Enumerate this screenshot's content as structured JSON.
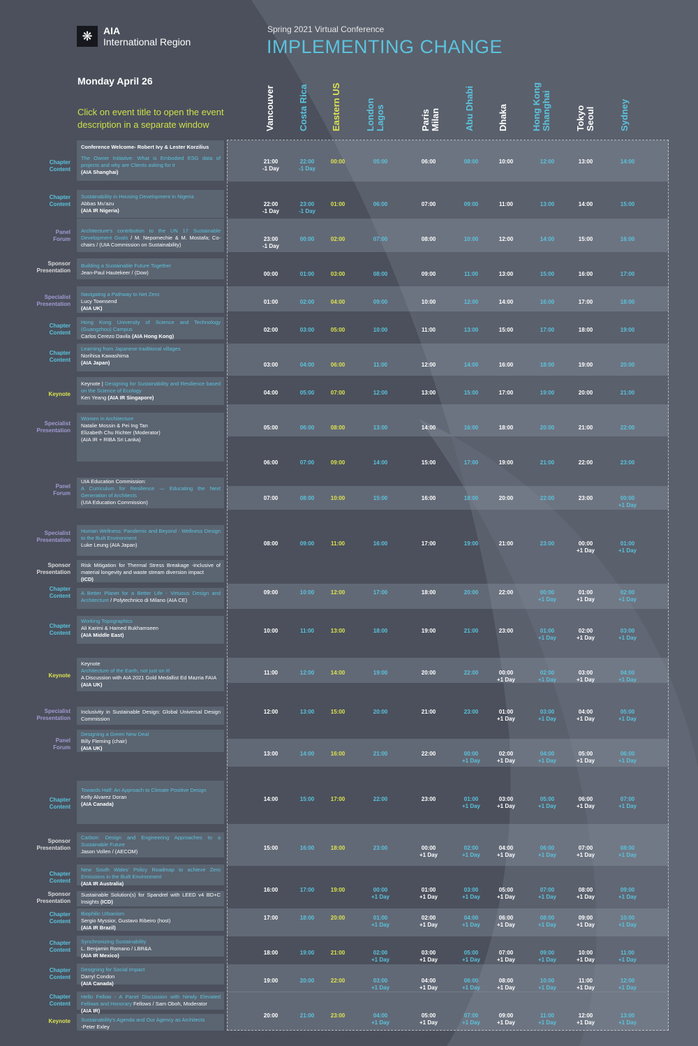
{
  "org": {
    "short": "AIA",
    "name": "International Region"
  },
  "conference": {
    "subtitle": "Spring 2021 Virtual Conference",
    "title": "IMPLEMENTING CHANGE"
  },
  "day": "Monday April 26",
  "instructions": "Click on event title to open the event description in a separate window",
  "colors": {
    "background": "#4b505c",
    "accent_blue": "#5bc3dd",
    "accent_yellow": "#dde34e",
    "accent_purple": "#a39ad2"
  },
  "cities": [
    {
      "label": "Vancouver",
      "color": "white"
    },
    {
      "label": "Costa Rica",
      "color": "blue"
    },
    {
      "label": "Eastern US",
      "color": "yellow"
    },
    {
      "label": "London\nLagos",
      "color": "blue"
    },
    {
      "label": "Paris\nMilan",
      "color": "white"
    },
    {
      "label": "Abu Dhabi",
      "color": "blue"
    },
    {
      "label": "Dhaka",
      "color": "white"
    },
    {
      "label": "Hong Kong\nShanghai",
      "color": "blue"
    },
    {
      "label": "Tokyo\nSeoul",
      "color": "white"
    },
    {
      "label": "Sydney",
      "color": "blue"
    }
  ],
  "time_rows": [
    {
      "times": [
        "21:00\n-1 Day",
        "22:00\n-1 Day",
        "00:00",
        "05:00",
        "06:00",
        "08:00",
        "10:00",
        "12:00",
        "13:00",
        "14:00"
      ]
    },
    {
      "times": [
        "22:00\n-1 Day",
        "23:00\n-1 Day",
        "01:00",
        "06:00",
        "07:00",
        "09:00",
        "11:00",
        "13:00",
        "14:00",
        "15:00"
      ]
    },
    {
      "times": [
        "23:00\n-1 Day",
        "00:00",
        "02:00",
        "07:00",
        "08:00",
        "10:00",
        "12:00",
        "14:00",
        "15:00",
        "16:00"
      ]
    },
    {
      "times": [
        "00:00",
        "01:00",
        "03:00",
        "08:00",
        "09:00",
        "11:00",
        "13:00",
        "15:00",
        "16:00",
        "17:00"
      ]
    },
    {
      "times": [
        "01:00",
        "02:00",
        "04:00",
        "09:00",
        "10:00",
        "12:00",
        "14:00",
        "16:00",
        "17:00",
        "18:00"
      ]
    },
    {
      "times": [
        "02:00",
        "03:00",
        "05:00",
        "10:00",
        "11:00",
        "13:00",
        "15:00",
        "17:00",
        "18:00",
        "19:00"
      ]
    },
    {
      "times": [
        "03:00",
        "04:00",
        "06:00",
        "11:00",
        "12:00",
        "14:00",
        "16:00",
        "18:00",
        "19:00",
        "20:00"
      ]
    },
    {
      "times": [
        "04:00",
        "05:00",
        "07:00",
        "12:00",
        "13:00",
        "15:00",
        "17:00",
        "19:00",
        "20:00",
        "21:00"
      ]
    },
    {
      "times": [
        "05:00",
        "06:00",
        "08:00",
        "13:00",
        "14:00",
        "16:00",
        "18:00",
        "20:00",
        "21:00",
        "22:00"
      ]
    },
    {
      "times": [
        "06:00",
        "07:00",
        "09:00",
        "14:00",
        "15:00",
        "17:00",
        "19:00",
        "21:00",
        "22:00",
        "23:00"
      ]
    },
    {
      "times": [
        "07:00",
        "08:00",
        "10:00",
        "15:00",
        "16:00",
        "18:00",
        "20:00",
        "22:00",
        "23:00",
        "00:00\n+1 Day"
      ]
    },
    {
      "times": [
        "08:00",
        "09:00",
        "11:00",
        "16:00",
        "17:00",
        "19:00",
        "21:00",
        "23:00",
        "00:00\n+1 Day",
        "01:00\n+1 Day"
      ]
    },
    {
      "times": [
        "09:00",
        "10:00",
        "12:00",
        "17:00",
        "18:00",
        "20:00",
        "22:00",
        "00:00\n+1 Day",
        "01:00\n+1 Day",
        "02:00\n+1 Day"
      ]
    },
    {
      "times": [
        "10:00",
        "11:00",
        "13:00",
        "18:00",
        "19:00",
        "21:00",
        "23:00",
        "01:00\n+1 Day",
        "02:00\n+1 Day",
        "03:00\n+1 Day"
      ]
    },
    {
      "times": [
        "11:00",
        "12:00",
        "14:00",
        "19:00",
        "20:00",
        "22:00",
        "00:00\n+1 Day",
        "02:00\n+1 Day",
        "03:00\n+1 Day",
        "04:00\n+1 Day"
      ]
    },
    {
      "times": [
        "12:00",
        "13:00",
        "15:00",
        "20:00",
        "21:00",
        "23:00",
        "01:00\n+1 Day",
        "03:00\n+1 Day",
        "04:00\n+1 Day",
        "05:00\n+1 Day"
      ]
    },
    {
      "times": [
        "13:00",
        "14:00",
        "16:00",
        "21:00",
        "22:00",
        "00:00\n+1 Day",
        "02:00\n+1 Day",
        "04:00\n+1 Day",
        "05:00\n+1 Day",
        "06:00\n+1 Day"
      ]
    },
    {
      "times": [
        "14:00",
        "15:00",
        "17:00",
        "22:00",
        "23:00",
        "01:00\n+1 Day",
        "03:00\n+1 Day",
        "05:00\n+1 Day",
        "06:00\n+1 Day",
        "07:00\n+1 Day"
      ]
    },
    {
      "times": [
        "15:00",
        "16:00",
        "18:00",
        "23:00",
        "00:00\n+1 Day",
        "02:00\n+1 Day",
        "04:00\n+1 Day",
        "06:00\n+1 Day",
        "07:00\n+1 Day",
        "08:00\n+1 Day"
      ]
    },
    {
      "times": [
        "16:00",
        "17:00",
        "19:00",
        "00:00\n+1 Day",
        "01:00\n+1 Day",
        "03:00\n+1 Day",
        "05:00\n+1 Day",
        "07:00\n+1 Day",
        "08:00\n+1 Day",
        "09:00\n+1 Day"
      ]
    },
    {
      "times": [
        "17:00",
        "18:00",
        "20:00",
        "01:00\n+1 Day",
        "02:00\n+1 Day",
        "04:00\n+1 Day",
        "06:00\n+1 Day",
        "08:00\n+1 Day",
        "09:00\n+1 Day",
        "10:00\n+1 Day"
      ]
    },
    {
      "times": [
        "18:00",
        "19:00",
        "21:00",
        "02:00\n+1 Day",
        "03:00\n+1 Day",
        "05:00\n+1 Day",
        "07:00\n+1 Day",
        "09:00\n+1 Day",
        "10:00\n+1 Day",
        "11:00\n+1 Day"
      ]
    },
    {
      "times": [
        "19:00",
        "20:00",
        "22:00",
        "03:00\n+1 Day",
        "04:00\n+1 Day",
        "06:00\n+1 Day",
        "08:00\n+1 Day",
        "10:00\n+1 Day",
        "11:00\n+1 Day",
        "12:00\n+1 Day"
      ]
    },
    {
      "times": [
        "20:00",
        "21:00",
        "23:00",
        "04:00\n+1 Day",
        "05:00\n+1 Day",
        "07:00\n+1 Day",
        "09:00\n+1 Day",
        "11:00\n+1 Day",
        "12:00\n+1 Day",
        "13:00\n+1 Day"
      ]
    }
  ],
  "events": [
    {
      "category": "Chapter\nContent",
      "kind": "chapter",
      "lines": [
        {
          "t": "Conference Welcome- Robert Ivy & Lester Korzilius",
          "s": "b"
        },
        {
          "t": "",
          "s": "n"
        },
        {
          "t": "The Owner Initiative: What is Embodied ESG data of projects and why are Clients asking for it",
          "s": "t"
        },
        {
          "t": "(AIA Shanghai)",
          "s": "b"
        }
      ]
    },
    {
      "category": "Chapter\nContent",
      "kind": "chapter",
      "lines": [
        {
          "t": "Sustainability in Housing Development in Nigeria",
          "s": "t"
        },
        {
          "t": "Abbas Mu'azu",
          "s": "n"
        },
        {
          "t": "(AIA IR Nigeria)",
          "s": "b"
        }
      ]
    },
    {
      "category": "Panel\nForum",
      "kind": "panel",
      "lines": [
        {
          "t": "Architecture's contribution to the UN 17 Sustainable Development Goals",
          "s": "t"
        },
        {
          "t": " / M. Nepomechie & M. Mostafa; Co-chairs / (UIA Commission on Sustainability)",
          "s": "n"
        }
      ]
    },
    {
      "category": "Sponsor\nPresentation",
      "kind": "sponsor",
      "lines": [
        {
          "t": "Building a Sustainable Future Together",
          "s": "t"
        },
        {
          "t": "Jean-Paul Hautekeer / (Dow)",
          "s": "n"
        }
      ]
    },
    {
      "category": "Specialist\nPresentation",
      "kind": "specialist",
      "lines": [
        {
          "t": "Navigating a Pathway to Net Zero",
          "s": "t"
        },
        {
          "t": "Lucy Townsend",
          "s": "n"
        },
        {
          "t": "(AIA UK)",
          "s": "b"
        }
      ]
    },
    {
      "category": "Chapter\nContent",
      "kind": "chapter",
      "lines": [
        {
          "t": "Hong Kong University of Science and Technology (Guangzhou) Campus",
          "s": "t"
        },
        {
          "t": "Carlos Cerezo Davila ",
          "s": "n"
        },
        {
          "t": "(AIA Hong Kong)",
          "s": "b"
        }
      ]
    },
    {
      "category": "Chapter\nContent",
      "kind": "chapter",
      "lines": [
        {
          "t": "Learning from Japanese traditional villages",
          "s": "t"
        },
        {
          "t": "Norihisa Kawashima",
          "s": "n"
        },
        {
          "t": "(AIA Japan)",
          "s": "b"
        }
      ]
    },
    {
      "category": "Keynote",
      "kind": "keynote",
      "lines": [
        {
          "t": "Keynote | ",
          "s": "n"
        },
        {
          "t": "Designing for Sustainability and Resilience based on the Science of Ecology",
          "s": "t"
        },
        {
          "t": "Ken Yeang ",
          "s": "n"
        },
        {
          "t": "(AIA IR Singapore)",
          "s": "b"
        }
      ]
    },
    {
      "category": "Specialist\nPresentation",
      "kind": "specialist",
      "lines": [
        {
          "t": "Women in Architecture",
          "s": "t"
        },
        {
          "t": "Natalie Mossin & Pei Ing Tan",
          "s": "n"
        },
        {
          "t": "Elizabeth Chu Richter (Moderator)",
          "s": "n"
        },
        {
          "t": "(AIA IR + RIBA Sri Lanka)",
          "s": "n"
        }
      ]
    },
    {
      "category": "Panel\nForum",
      "kind": "panel",
      "lines": [
        {
          "t": "UIA Education Commission:",
          "s": "n"
        },
        {
          "t": "A Curriculum for Resilience — Educating the Next Generation of Architects",
          "s": "t"
        },
        {
          "t": "(UIA Education Commission)",
          "s": "n"
        }
      ]
    },
    {
      "category": "Specialist\nPresentation",
      "kind": "specialist",
      "lines": [
        {
          "t": "Human Wellness: Pandemic and Beyond - Wellness Design to the Built Environment",
          "s": "t"
        },
        {
          "t": "Luke Leung (AIA Japan)",
          "s": "n"
        }
      ]
    },
    {
      "category": "Sponsor\nPresentation",
      "kind": "sponsor",
      "lines": [
        {
          "t": "Risk Mitigation for Thermal Stress Breakage -inclusive of material longevity and waste stream diversion impact",
          "s": "n"
        },
        {
          "t": "(ICD)",
          "s": "b"
        }
      ]
    },
    {
      "category": "Chapter\nContent",
      "kind": "chapter",
      "lines": [
        {
          "t": "A Better Planet for a Better Life - Virtuous Design and Architecture",
          "s": "t"
        },
        {
          "t": " / Polytechnico di Milano (AIA CE)",
          "s": "n"
        }
      ]
    },
    {
      "category": "Chapter\nContent",
      "kind": "chapter",
      "lines": [
        {
          "t": "Working Topographics",
          "s": "t"
        },
        {
          "t": "Ali Karimi & Hamed Bukhamseen",
          "s": "n"
        },
        {
          "t": "(AIA Middle East)",
          "s": "b"
        }
      ]
    },
    {
      "category": "Keynote",
      "kind": "keynote",
      "lines": [
        {
          "t": "Keynote",
          "s": "n"
        },
        {
          "t": "Architecture of the Earth, not just on it!",
          "s": "t"
        },
        {
          "t": "A Discussion with AIA 2021 Gold Medallist Ed Mazria FAIA",
          "s": "n"
        },
        {
          "t": "(AIA UK)",
          "s": "b"
        }
      ]
    },
    {
      "category": "Specialist\nPresentation",
      "kind": "specialist",
      "lines": [
        {
          "t": "Inclusivity in Sustainable Design: Global Universal Design Commission",
          "s": "n"
        }
      ]
    },
    {
      "category": "Panel\nForum",
      "kind": "panel",
      "lines": [
        {
          "t": "Designing a Green New Deal",
          "s": "t"
        },
        {
          "t": "Billy Fleming (chair)",
          "s": "n"
        },
        {
          "t": "(AIA UK)",
          "s": "b"
        }
      ]
    },
    {
      "category": "Chapter\nContent",
      "kind": "chapter",
      "lines": [
        {
          "t": "Towards Half: An Approach to Climate Positive Design",
          "s": "t"
        },
        {
          "t": "Kelly Alvarez Doran",
          "s": "n"
        },
        {
          "t": "(AIA Canada)",
          "s": "b"
        }
      ]
    },
    {
      "category": "Sponsor\nPresentation",
      "kind": "sponsor",
      "lines": [
        {
          "t": "Carbon: Design and Engineering Approaches to a Sustainable Future",
          "s": "t"
        },
        {
          "t": "Jason Vollen / (AECOM)",
          "s": "n"
        }
      ]
    },
    {
      "category": "Chapter\nContent",
      "kind": "chapter",
      "lines": [
        {
          "t": "New South Wales' Policy Roadmap to achieve Zero Emissions in the Built Environment",
          "s": "t"
        },
        {
          "t": "(AIA IR Australia)",
          "s": "b"
        }
      ]
    },
    {
      "category": "Sponsor\nPresentation",
      "kind": "sponsor",
      "lines": [
        {
          "t": "Sustainable Solution(s) for Spandrel with LEED v4 BD+C Insights ",
          "s": "n"
        },
        {
          "t": "(ICD)",
          "s": "b"
        }
      ]
    },
    {
      "category": "Chapter\nContent",
      "kind": "chapter",
      "lines": [
        {
          "t": "Biophilic Urbanism",
          "s": "t"
        },
        {
          "t": "Sergio Myssior, Gustavo Ribeiro (host)",
          "s": "n"
        },
        {
          "t": "(AIA IR Brazil)",
          "s": "b"
        }
      ]
    },
    {
      "category": "Chapter\nContent",
      "kind": "chapter",
      "lines": [
        {
          "t": "Synchronizing Sustainability",
          "s": "t"
        },
        {
          "t": "L. Benjamin Romano / LBR&A",
          "s": "n"
        },
        {
          "t": "(AIA IR Mexico)",
          "s": "b"
        }
      ]
    },
    {
      "category": "Chapter\nContent",
      "kind": "chapter",
      "lines": [
        {
          "t": "Designing for Social Impact",
          "s": "t"
        },
        {
          "t": "Darryl Condon",
          "s": "n"
        },
        {
          "t": "(AIA Canada)",
          "s": "b"
        }
      ]
    },
    {
      "category": "Chapter\nContent",
      "kind": "chapter",
      "lines": [
        {
          "t": "Hello Fellow - A Panel Discussion with Newly Elevated Fellows and Honorary",
          "s": "t"
        },
        {
          "t": " Fellows / Sam Oboh, Moderator",
          "s": "n"
        },
        {
          "t": "(AIA IR)",
          "s": "b"
        }
      ]
    },
    {
      "category": "Keynote",
      "kind": "keynote",
      "lines": [
        {
          "t": "Sustainability's Agenda and Our Agency as Architects",
          "s": "t"
        },
        {
          "t": "-Peter Exley",
          "s": "n"
        }
      ]
    }
  ]
}
